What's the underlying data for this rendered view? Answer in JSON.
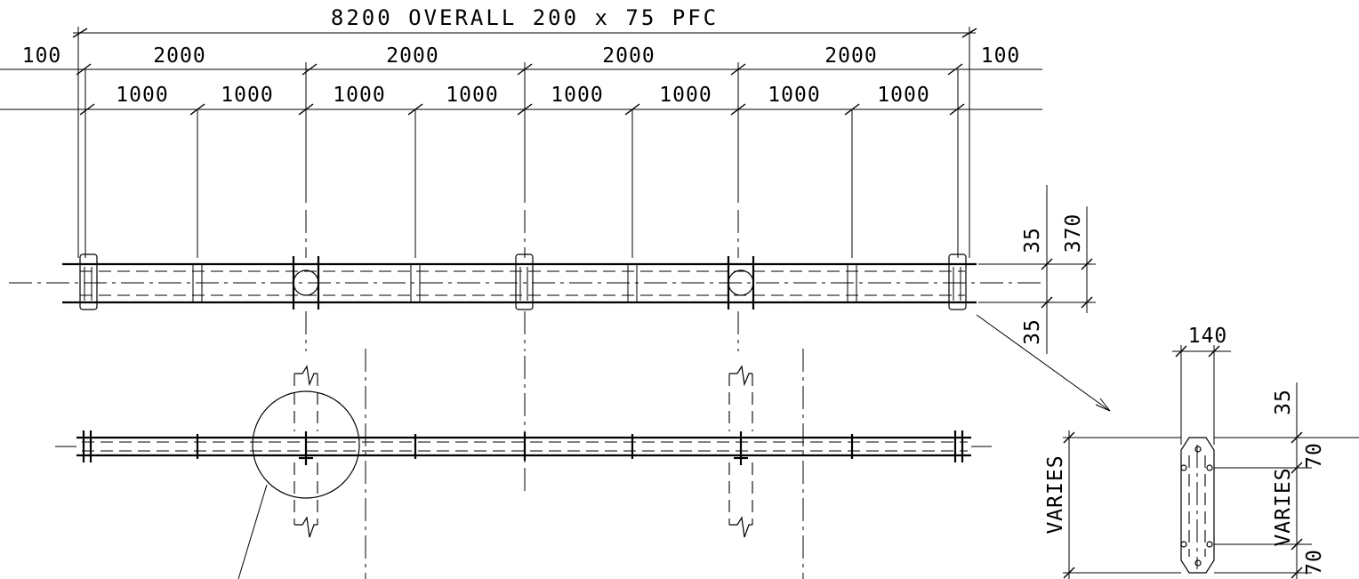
{
  "title": "8200 OVERALL 200 x 75 PFC",
  "spans": {
    "end_left": "100",
    "end_right": "100",
    "main": [
      "2000",
      "2000",
      "2000",
      "2000"
    ],
    "sub": [
      "1000",
      "1000",
      "1000",
      "1000",
      "1000",
      "1000",
      "1000",
      "1000"
    ]
  },
  "right_dims": {
    "top": "35",
    "total": "370",
    "bottom": "35"
  },
  "detail": {
    "width": "140",
    "top": "35",
    "hole_upper": "70",
    "hole_lower": "70",
    "varies_outer": "VARIES",
    "varies_inner": "VARIES"
  }
}
